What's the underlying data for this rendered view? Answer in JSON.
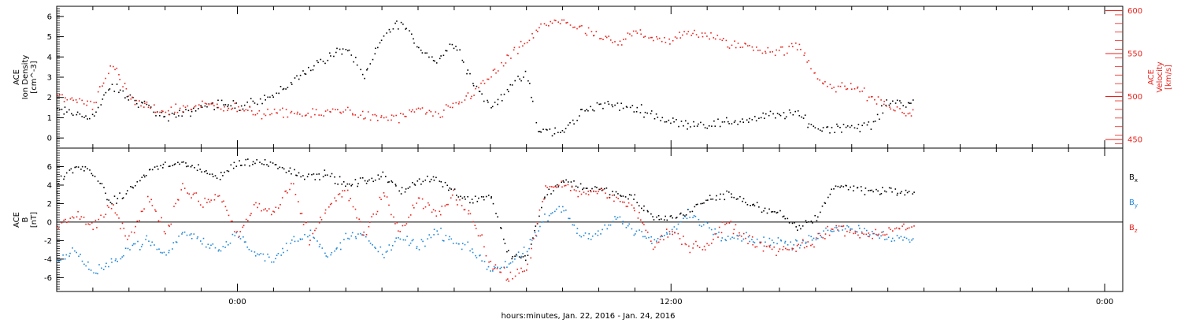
{
  "xlabel": "hours:minutes, Jan. 22, 2016 - Jan. 24, 2016",
  "colors": {
    "black": "#000000",
    "red": "#e8221c",
    "blue": "#1f86d6",
    "frame": "#000000"
  },
  "chart_data": [
    {
      "type": "scatter",
      "panel": "plasma",
      "left_axis": {
        "title_lines": [
          "ACE",
          "Ion Density",
          "[cm^-3]"
        ],
        "ylim": [
          -0.5,
          6.5
        ],
        "ticks": [
          "0",
          "1",
          "2",
          "3",
          "4",
          "5",
          "6"
        ],
        "color": "#000000"
      },
      "right_axis": {
        "title_lines": [
          "ACE",
          "Velocity",
          "[km/s]"
        ],
        "ylim": [
          440,
          605
        ],
        "ticks": [
          "450",
          "500",
          "550",
          "600"
        ],
        "color": "#e8221c"
      },
      "x_ticks": [
        "0:00",
        "12:00",
        "0:00"
      ],
      "xlim_hours": [
        -5,
        24.5
      ],
      "series": [
        {
          "axis": "left",
          "color": "#000000",
          "knots": [
            [
              -5,
              1.4
            ],
            [
              -4.5,
              1.2
            ],
            [
              -4,
              1.1
            ],
            [
              -3.5,
              2.6
            ],
            [
              -3,
              2.0
            ],
            [
              -2.5,
              1.6
            ],
            [
              -2,
              1.0
            ],
            [
              -1.5,
              1.2
            ],
            [
              -1,
              1.6
            ],
            [
              -0.5,
              1.7
            ],
            [
              0,
              1.6
            ],
            [
              0.5,
              1.9
            ],
            [
              1,
              2.1
            ],
            [
              1.5,
              2.8
            ],
            [
              2,
              3.5
            ],
            [
              2.5,
              4.0
            ],
            [
              3,
              4.5
            ],
            [
              3.5,
              3.0
            ],
            [
              4,
              5.0
            ],
            [
              4.5,
              5.8
            ],
            [
              5,
              4.5
            ],
            [
              5.5,
              3.8
            ],
            [
              6,
              4.8
            ],
            [
              6.5,
              2.8
            ],
            [
              7,
              1.5
            ],
            [
              7.5,
              2.5
            ],
            [
              8,
              3.2
            ],
            [
              8.3,
              0.4
            ],
            [
              9,
              0.3
            ],
            [
              9.5,
              1.3
            ],
            [
              10,
              1.7
            ],
            [
              11,
              1.5
            ],
            [
              11.5,
              1.2
            ],
            [
              12,
              0.8
            ],
            [
              13,
              0.7
            ],
            [
              14,
              0.9
            ],
            [
              15,
              1.2
            ],
            [
              15.5,
              1.2
            ],
            [
              16,
              0.5
            ],
            [
              17,
              0.6
            ],
            [
              17.5,
              0.6
            ],
            [
              18,
              1.8
            ],
            [
              18.7,
              1.8
            ]
          ],
          "noise": 0.35,
          "count": 420
        },
        {
          "axis": "right",
          "color": "#e8221c",
          "knots": [
            [
              -5,
              500
            ],
            [
              -4.5,
              497
            ],
            [
              -4,
              492
            ],
            [
              -3.5,
              540
            ],
            [
              -3,
              498
            ],
            [
              -2.5,
              487
            ],
            [
              -2,
              484
            ],
            [
              -1.5,
              487
            ],
            [
              -1,
              491
            ],
            [
              -0.5,
              492
            ],
            [
              0,
              485
            ],
            [
              0.5,
              482
            ],
            [
              1,
              480
            ],
            [
              1.5,
              482
            ],
            [
              2,
              478
            ],
            [
              2.5,
              483
            ],
            [
              3,
              486
            ],
            [
              3.5,
              478
            ],
            [
              4,
              475
            ],
            [
              4.5,
              476
            ],
            [
              5,
              485
            ],
            [
              5.5,
              478
            ],
            [
              6,
              490
            ],
            [
              6.5,
              505
            ],
            [
              7,
              525
            ],
            [
              7.5,
              545
            ],
            [
              8,
              565
            ],
            [
              8.5,
              585
            ],
            [
              9,
              590
            ],
            [
              9.5,
              578
            ],
            [
              10,
              570
            ],
            [
              10.5,
              560
            ],
            [
              11,
              577
            ],
            [
              11.5,
              570
            ],
            [
              12,
              565
            ],
            [
              12.5,
              575
            ],
            [
              13,
              572
            ],
            [
              13.5,
              563
            ],
            [
              14,
              560
            ],
            [
              14.5,
              555
            ],
            [
              15,
              553
            ],
            [
              15.5,
              560
            ],
            [
              16,
              525
            ],
            [
              16.5,
              510
            ],
            [
              17,
              512
            ],
            [
              17.5,
              500
            ],
            [
              18,
              488
            ],
            [
              18.7,
              480
            ]
          ],
          "noise": 9,
          "count": 420
        }
      ]
    },
    {
      "type": "scatter",
      "panel": "magnetic-field",
      "left_axis": {
        "title_lines": [
          "ACE",
          "B",
          "[nT]"
        ],
        "ylim": [
          -7.5,
          8.0
        ],
        "ticks": [
          "-6",
          "-4",
          "-2",
          "0",
          "2",
          "4",
          "6"
        ],
        "color": "#000000"
      },
      "x_ticks": [
        "0:00",
        "12:00",
        "0:00"
      ],
      "xlim_hours": [
        -5,
        24.5
      ],
      "zero_line": true,
      "legend": [
        {
          "label": "B",
          "sub": "x",
          "color": "#000000"
        },
        {
          "label": "B",
          "sub": "y",
          "color": "#1f86d6"
        },
        {
          "label": "B",
          "sub": "z",
          "color": "#e8221c"
        }
      ],
      "series": [
        {
          "name": "Bx",
          "color": "#000000",
          "knots": [
            [
              -5,
              4.5
            ],
            [
              -4.5,
              6.0
            ],
            [
              -4,
              5.5
            ],
            [
              -3.5,
              2.0
            ],
            [
              -3,
              3.5
            ],
            [
              -2.5,
              5.5
            ],
            [
              -2,
              6.3
            ],
            [
              -1.5,
              6.4
            ],
            [
              -1,
              5.5
            ],
            [
              -0.5,
              5.0
            ],
            [
              0,
              6.5
            ],
            [
              0.5,
              6.5
            ],
            [
              1,
              6.4
            ],
            [
              1.5,
              5.5
            ],
            [
              2,
              5.0
            ],
            [
              2.5,
              5.2
            ],
            [
              3,
              4.0
            ],
            [
              3.5,
              4.5
            ],
            [
              4,
              5.0
            ],
            [
              4.5,
              3.5
            ],
            [
              5,
              4.5
            ],
            [
              5.5,
              4.8
            ],
            [
              6,
              3.2
            ],
            [
              6.5,
              2.5
            ],
            [
              7,
              3.0
            ],
            [
              7.5,
              -3.5
            ],
            [
              8,
              -3.8
            ],
            [
              8.5,
              3.0
            ],
            [
              9,
              4.5
            ],
            [
              9.5,
              4.0
            ],
            [
              10,
              3.5
            ],
            [
              10.5,
              3.0
            ],
            [
              11,
              2.5
            ],
            [
              11.5,
              0.5
            ],
            [
              12,
              0.5
            ],
            [
              12.5,
              1.2
            ],
            [
              13,
              2.5
            ],
            [
              13.5,
              3.0
            ],
            [
              14,
              2.5
            ],
            [
              14.5,
              1.5
            ],
            [
              15,
              0.8
            ],
            [
              15.5,
              -0.5
            ],
            [
              16,
              0.5
            ],
            [
              16.5,
              4.0
            ],
            [
              17,
              3.8
            ],
            [
              17.5,
              3.5
            ],
            [
              18,
              3.5
            ],
            [
              18.7,
              3.0
            ]
          ],
          "noise": 0.7,
          "count": 450
        },
        {
          "name": "By",
          "color": "#1f86d6",
          "knots": [
            [
              -5,
              -4.0
            ],
            [
              -4.5,
              -3.0
            ],
            [
              -4,
              -5.5
            ],
            [
              -3.5,
              -4.5
            ],
            [
              -3,
              -2.5
            ],
            [
              -2.5,
              -2.0
            ],
            [
              -2,
              -3.5
            ],
            [
              -1.5,
              -1.0
            ],
            [
              -1,
              -2.0
            ],
            [
              -0.5,
              -3.0
            ],
            [
              0,
              -1.0
            ],
            [
              0.5,
              -3.5
            ],
            [
              1,
              -4.0
            ],
            [
              1.5,
              -2.0
            ],
            [
              2,
              -1.0
            ],
            [
              2.5,
              -4.0
            ],
            [
              3,
              -1.5
            ],
            [
              3.5,
              -1.5
            ],
            [
              4,
              -3.5
            ],
            [
              4.5,
              -1.5
            ],
            [
              5,
              -2.5
            ],
            [
              5.5,
              -1.0
            ],
            [
              6,
              -2.0
            ],
            [
              6.5,
              -3.0
            ],
            [
              7,
              -5.0
            ],
            [
              7.5,
              -4.5
            ],
            [
              8,
              -3.0
            ],
            [
              8.5,
              0.5
            ],
            [
              9,
              1.5
            ],
            [
              9.5,
              -1.5
            ],
            [
              10,
              -1.0
            ],
            [
              10.5,
              0.5
            ],
            [
              11,
              -1.0
            ],
            [
              11.5,
              -2.0
            ],
            [
              12,
              -1.0
            ],
            [
              12.5,
              1.0
            ],
            [
              13,
              -0.5
            ],
            [
              13.5,
              -1.5
            ],
            [
              14,
              -1.5
            ],
            [
              14.5,
              -2.0
            ],
            [
              15,
              -2.0
            ],
            [
              15.5,
              -2.5
            ],
            [
              16,
              -1.5
            ],
            [
              16.5,
              -0.5
            ],
            [
              17,
              -0.5
            ],
            [
              17.5,
              -1.0
            ],
            [
              18,
              -1.5
            ],
            [
              18.7,
              -2.0
            ]
          ],
          "noise": 0.8,
          "count": 450
        },
        {
          "name": "Bz",
          "color": "#e8221c",
          "knots": [
            [
              -5,
              -0.5
            ],
            [
              -4.5,
              1.0
            ],
            [
              -4,
              -0.5
            ],
            [
              -3.5,
              2.0
            ],
            [
              -3,
              -2.0
            ],
            [
              -2.5,
              3.0
            ],
            [
              -2,
              -1.0
            ],
            [
              -1.5,
              4.0
            ],
            [
              -1,
              2.0
            ],
            [
              -0.5,
              3.0
            ],
            [
              0,
              -1.5
            ],
            [
              0.5,
              2.0
            ],
            [
              1,
              1.0
            ],
            [
              1.5,
              4.0
            ],
            [
              2,
              -2.0
            ],
            [
              2.5,
              2.0
            ],
            [
              3,
              3.5
            ],
            [
              3.5,
              -1.5
            ],
            [
              4,
              3.0
            ],
            [
              4.5,
              -1.0
            ],
            [
              5,
              2.5
            ],
            [
              5.5,
              1.0
            ],
            [
              6,
              3.0
            ],
            [
              6.5,
              0.5
            ],
            [
              7,
              -4.5
            ],
            [
              7.5,
              -6.0
            ],
            [
              8,
              -5.0
            ],
            [
              8.5,
              3.5
            ],
            [
              9,
              4.0
            ],
            [
              9.5,
              3.0
            ],
            [
              10,
              3.5
            ],
            [
              10.5,
              2.5
            ],
            [
              11,
              1.5
            ],
            [
              11.5,
              -2.5
            ],
            [
              12,
              -1.0
            ],
            [
              12.5,
              -2.5
            ],
            [
              13,
              -2.5
            ],
            [
              13.5,
              0.0
            ],
            [
              14,
              -1.5
            ],
            [
              14.5,
              -2.5
            ],
            [
              15,
              -3.0
            ],
            [
              15.5,
              -2.5
            ],
            [
              16,
              -2.0
            ],
            [
              16.5,
              -0.5
            ],
            [
              17,
              -1.0
            ],
            [
              17.5,
              -1.5
            ],
            [
              18,
              -0.8
            ],
            [
              18.7,
              -0.5
            ]
          ],
          "noise": 0.9,
          "count": 450
        }
      ]
    }
  ]
}
